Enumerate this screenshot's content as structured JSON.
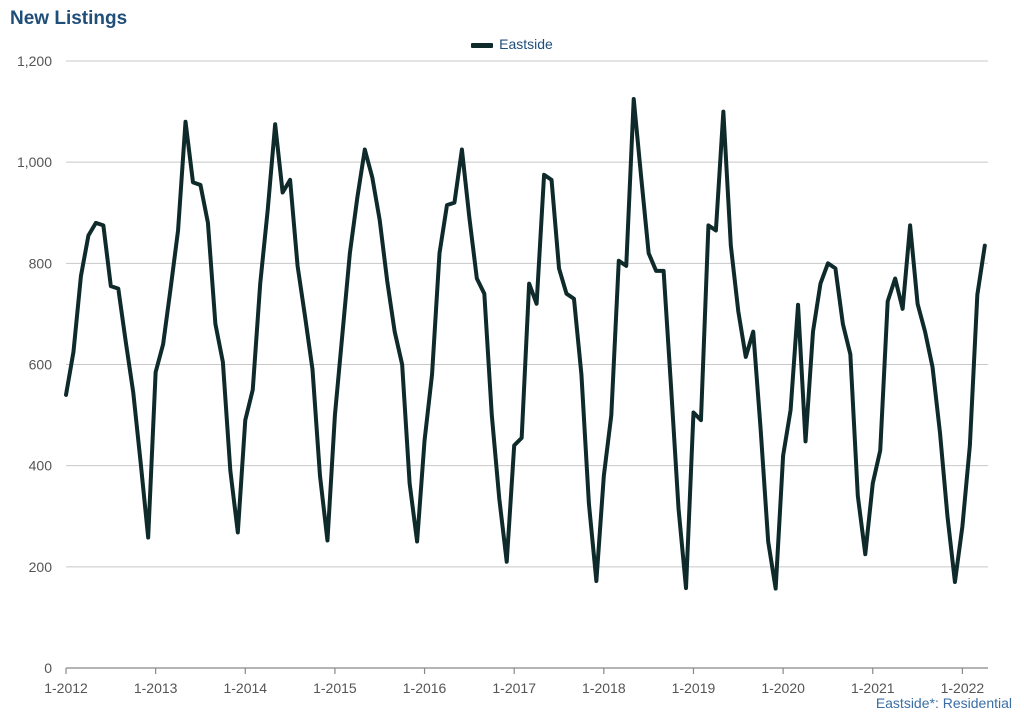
{
  "title": "New Listings",
  "legend": {
    "label": "Eastside"
  },
  "footnote": "Eastside*: Residential",
  "colors": {
    "series": "#0f2a2a",
    "title": "#1f4e79",
    "grid": "#c8c8c8"
  },
  "chart_data": {
    "type": "line",
    "title": "New Listings",
    "xlabel": "",
    "ylabel": "",
    "ylim": [
      0,
      1200
    ],
    "yticks": [
      0,
      200,
      400,
      600,
      800,
      1000,
      1200
    ],
    "ytick_labels": [
      "0",
      "200",
      "400",
      "600",
      "800",
      "1,000",
      "1,200"
    ],
    "xtick_labels": [
      "1-2012",
      "1-2013",
      "1-2014",
      "1-2015",
      "1-2016",
      "1-2017",
      "1-2018",
      "1-2019",
      "1-2020",
      "1-2021",
      "1-2022"
    ],
    "grid": true,
    "legend_position": "top-center",
    "series": [
      {
        "name": "Eastside",
        "start": "1-2012",
        "frequency": "monthly",
        "values": [
          540,
          625,
          775,
          855,
          880,
          875,
          755,
          750,
          645,
          545,
          405,
          258,
          585,
          640,
          750,
          865,
          1080,
          960,
          955,
          880,
          680,
          605,
          390,
          268,
          490,
          550,
          760,
          905,
          1075,
          940,
          965,
          795,
          695,
          590,
          380,
          252,
          500,
          660,
          820,
          930,
          1025,
          970,
          885,
          765,
          665,
          600,
          365,
          250,
          450,
          580,
          820,
          915,
          920,
          1025,
          890,
          770,
          740,
          500,
          335,
          210,
          440,
          455,
          760,
          720,
          975,
          965,
          790,
          740,
          730,
          580,
          325,
          172,
          380,
          500,
          805,
          795,
          1125,
          970,
          820,
          785,
          785,
          555,
          315,
          158,
          505,
          490,
          875,
          865,
          1100,
          835,
          705,
          615,
          665,
          470,
          250,
          157,
          420,
          510,
          718,
          448,
          665,
          760,
          800,
          790,
          680,
          620,
          340,
          225,
          365,
          430,
          725,
          770,
          710,
          875,
          720,
          665,
          595,
          465,
          300,
          170,
          280,
          440,
          738,
          835
        ]
      }
    ]
  }
}
